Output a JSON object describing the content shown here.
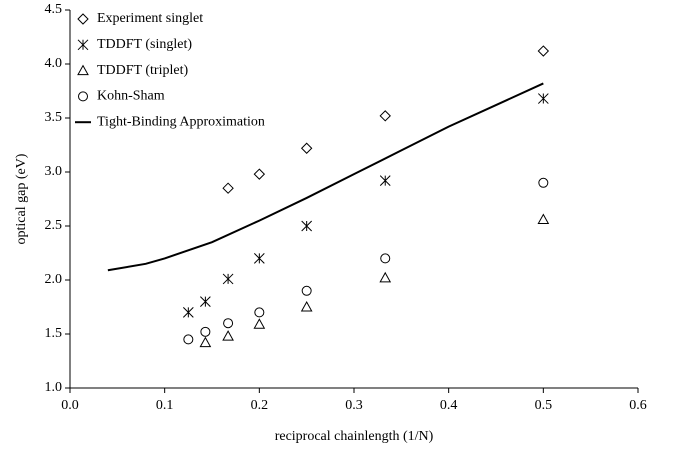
{
  "chart_data": {
    "type": "scatter",
    "xlabel": "reciprocal chainlength (1/N)",
    "ylabel": "optical gap (eV)",
    "xlim": [
      0,
      0.6
    ],
    "xticks": [
      {
        "value": 0,
        "label": "0.0"
      },
      0.1,
      0.2,
      0.3,
      0.4,
      0.5,
      0.6
    ],
    "ylim": [
      1,
      4.5
    ],
    "yticks": [
      {
        "value": 1,
        "label": "1.0"
      },
      1.5,
      {
        "value": 2,
        "label": "2.0"
      },
      2.5,
      {
        "value": 3,
        "label": "3.0"
      },
      3.5,
      {
        "value": 4,
        "label": "4.0"
      },
      4.5
    ],
    "legend": "upper left",
    "series": [
      {
        "name": "Experiment singlet",
        "type": "scatter",
        "marker": "diamond",
        "color": "#000000",
        "x": [
          0.167,
          0.2,
          0.25,
          0.333,
          0.5
        ],
        "values": [
          2.85,
          2.98,
          3.22,
          3.52,
          4.12
        ]
      },
      {
        "name": "TDDFT (singlet)",
        "type": "scatter",
        "marker": "asterisk",
        "color": "#000000",
        "x": [
          0.125,
          0.143,
          0.167,
          0.2,
          0.25,
          0.333,
          0.5
        ],
        "values": [
          1.7,
          1.8,
          2.01,
          2.2,
          2.5,
          2.92,
          3.68
        ]
      },
      {
        "name": "TDDFT (triplet)",
        "type": "scatter",
        "marker": "triangle",
        "color": "#000000",
        "x": [
          0.143,
          0.167,
          0.2,
          0.25,
          0.333,
          0.5
        ],
        "values": [
          1.42,
          1.48,
          1.59,
          1.75,
          2.02,
          2.56
        ]
      },
      {
        "name": "Kohn-Sham",
        "type": "scatter",
        "marker": "circle",
        "color": "#000000",
        "x": [
          0.125,
          0.143,
          0.167,
          0.2,
          0.25,
          0.333,
          0.5
        ],
        "values": [
          1.45,
          1.52,
          1.6,
          1.7,
          1.9,
          2.2,
          2.9
        ]
      },
      {
        "name": "Tight-Binding Approximation",
        "type": "line",
        "color": "#000000",
        "x": [
          0.04,
          0.08,
          0.1,
          0.15,
          0.2,
          0.25,
          0.3,
          0.35,
          0.4,
          0.45,
          0.5
        ],
        "values": [
          2.09,
          2.15,
          2.2,
          2.35,
          2.55,
          2.76,
          2.98,
          3.2,
          3.42,
          3.62,
          3.82
        ]
      }
    ]
  }
}
